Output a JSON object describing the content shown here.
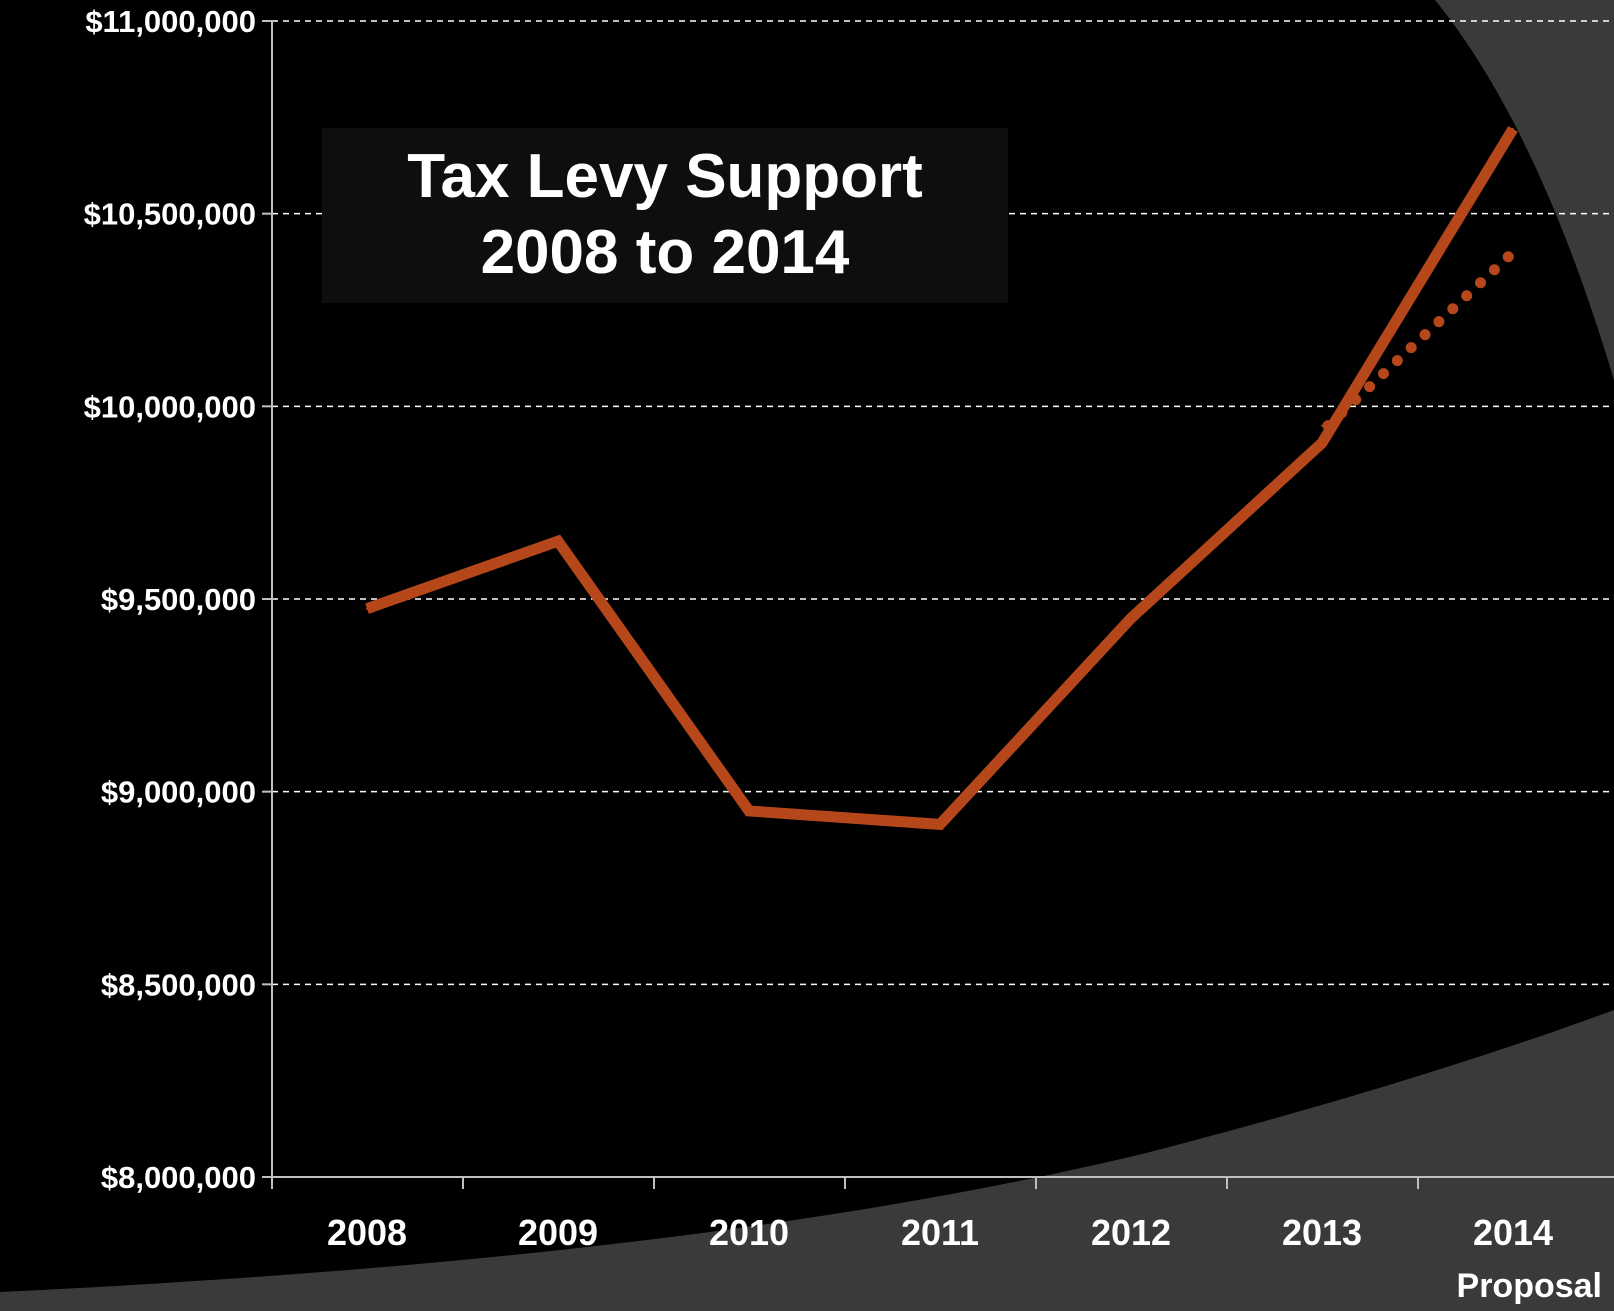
{
  "colors": {
    "background": "#000000",
    "swoosh": "#3a3a3a",
    "title_box": "#0e0e0e",
    "line": "#b5471b",
    "text": "#ffffff",
    "grid": "#ffffff"
  },
  "chart_data": {
    "type": "line",
    "title_lines": [
      "Tax Levy Support",
      "2008 to 2014"
    ],
    "xlabel": "",
    "ylabel": "",
    "categories": [
      "2008",
      "2009",
      "2010",
      "2011",
      "2012",
      "2013",
      "2014"
    ],
    "category_sublabels": [
      "",
      "",
      "",
      "",
      "",
      "",
      "Proposal"
    ],
    "ylim": [
      8000000,
      11000000
    ],
    "ytick_values": [
      8000000,
      8500000,
      9000000,
      9500000,
      10000000,
      10500000,
      11000000
    ],
    "ytick_labels": [
      "$8,000,000",
      "$8,500,000",
      "$9,000,000",
      "$9,500,000",
      "$10,000,000",
      "$10,500,000",
      "$11,000,000"
    ],
    "grid": "horizontal dashed",
    "legend": "none",
    "series": [
      {
        "style": "solid",
        "color": "#b5471b",
        "values": [
          9475000,
          9650000,
          8950000,
          8915000,
          9450000,
          9905000,
          10720000
        ]
      },
      {
        "style": "dotted",
        "color": "#b5471b",
        "points": [
          {
            "category": "2013",
            "value": 9950000
          },
          {
            "category": "2014",
            "value": 10390000
          }
        ]
      }
    ]
  }
}
